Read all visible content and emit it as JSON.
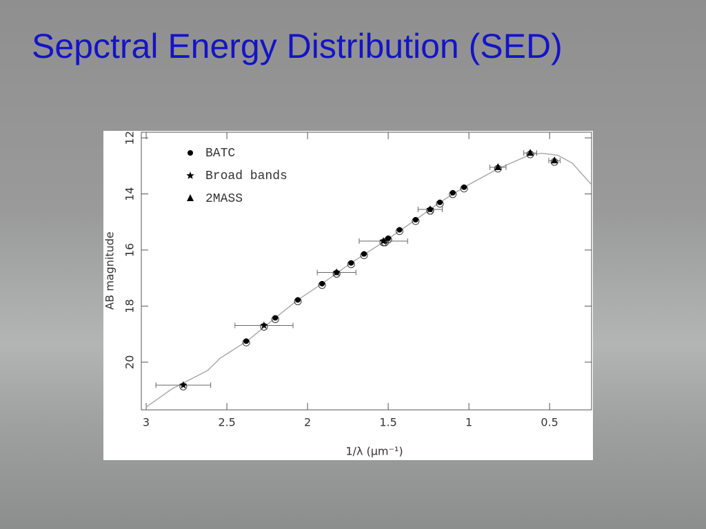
{
  "slide_title": "Sepctral Energy Distribution (SED)",
  "chart_data": {
    "type": "scatter",
    "x_label": "1/λ (μm⁻¹)",
    "y_label": "AB magnitude",
    "xlim": [
      3.03,
      0.24
    ],
    "ylim": [
      21.7,
      11.8
    ],
    "xticks": [
      3,
      2.5,
      2,
      1.5,
      1,
      0.5
    ],
    "yticks": [
      12,
      14,
      16,
      18,
      20
    ],
    "legend": "upper-left",
    "series": [
      {
        "marker": "line",
        "color": "#aaaaaa",
        "x": [
          3.0,
          2.84,
          2.62,
          2.54,
          2.37,
          2.2,
          2.06,
          1.91,
          1.73,
          1.52,
          1.33,
          1.18,
          1.03,
          0.82,
          0.62,
          0.55,
          0.45,
          0.36,
          0.24
        ],
        "values": [
          21.6,
          20.95,
          20.3,
          19.85,
          19.23,
          18.42,
          17.78,
          17.2,
          16.46,
          15.68,
          14.92,
          14.3,
          13.76,
          13.1,
          12.6,
          12.55,
          12.62,
          12.9,
          13.67
        ]
      },
      {
        "name": "BATC",
        "marker": "dot",
        "color": "#000000",
        "x": [
          2.38,
          2.2,
          2.06,
          1.91,
          1.82,
          1.73,
          1.65,
          1.52,
          1.5,
          1.43,
          1.33,
          1.24,
          1.18,
          1.1,
          1.03
        ],
        "values": [
          19.25,
          18.42,
          17.78,
          17.2,
          16.8,
          16.46,
          16.14,
          15.68,
          15.58,
          15.28,
          14.92,
          14.55,
          14.3,
          13.96,
          13.76
        ]
      },
      {
        "name": "Broad bands",
        "marker": "star",
        "color": "#000000",
        "x": [
          2.77,
          2.27,
          1.82,
          1.53,
          1.24
        ],
        "values": [
          20.82,
          18.69,
          16.8,
          15.68,
          14.55
        ],
        "xerr": [
          0.17,
          0.18,
          0.12,
          0.15,
          0.075
        ]
      },
      {
        "name": "2MASS",
        "marker": "triangle",
        "color": "#000000",
        "x": [
          0.82,
          0.62,
          0.47
        ],
        "values": [
          13.05,
          12.54,
          12.81
        ],
        "xerr": [
          0.05,
          0.04,
          0.035
        ]
      }
    ]
  }
}
